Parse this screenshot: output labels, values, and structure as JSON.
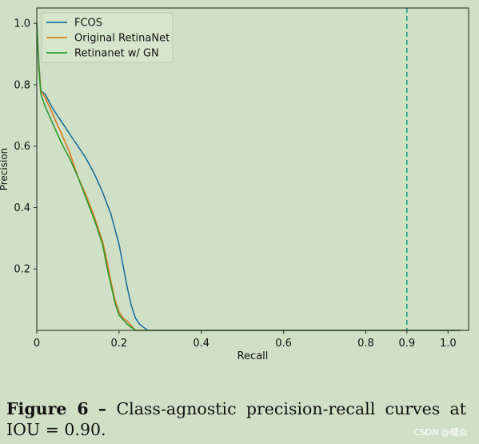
{
  "chart_data": {
    "type": "line",
    "title": "",
    "xlabel": "Recall",
    "ylabel": "Precision",
    "xlim": [
      0,
      1.05
    ],
    "ylim": [
      0,
      1.05
    ],
    "xticks": [
      "0",
      "0.2",
      "0.4",
      "0.6",
      "0.8",
      "0.9",
      "1.0"
    ],
    "xtick_values": [
      0,
      0.2,
      0.4,
      0.6,
      0.8,
      0.9,
      1.0
    ],
    "yticks": [
      "0.2",
      "0.4",
      "0.6",
      "0.8",
      "1.0"
    ],
    "ytick_values": [
      0.2,
      0.4,
      0.6,
      0.8,
      1.0
    ],
    "grid": false,
    "legend_position": "top-left",
    "vline": {
      "x": 0.9,
      "color": "#17a589",
      "style": "dashed"
    },
    "series": [
      {
        "name": "FCOS",
        "color": "#1f6f9a",
        "x": [
          0,
          0.005,
          0.01,
          0.02,
          0.04,
          0.06,
          0.08,
          0.1,
          0.12,
          0.14,
          0.16,
          0.18,
          0.2,
          0.21,
          0.22,
          0.23,
          0.24,
          0.25,
          0.26,
          0.27,
          0.3,
          1.03
        ],
        "y": [
          1.0,
          0.87,
          0.78,
          0.77,
          0.72,
          0.68,
          0.64,
          0.6,
          0.56,
          0.51,
          0.45,
          0.38,
          0.28,
          0.21,
          0.14,
          0.08,
          0.04,
          0.02,
          0.01,
          0.0,
          0.0,
          0.0
        ]
      },
      {
        "name": "Original RetinaNet",
        "color": "#d97a1f",
        "x": [
          0,
          0.005,
          0.01,
          0.02,
          0.04,
          0.06,
          0.08,
          0.1,
          0.12,
          0.14,
          0.16,
          0.17,
          0.18,
          0.19,
          0.2,
          0.21,
          0.22,
          0.23,
          0.24,
          0.27,
          1.03
        ],
        "y": [
          1.0,
          0.86,
          0.78,
          0.76,
          0.7,
          0.64,
          0.58,
          0.5,
          0.44,
          0.37,
          0.29,
          0.23,
          0.16,
          0.1,
          0.06,
          0.04,
          0.03,
          0.015,
          0.0,
          0.0,
          0.0
        ]
      },
      {
        "name": "Retinanet w/ GN",
        "color": "#2e9a2e",
        "x": [
          0,
          0.005,
          0.01,
          0.02,
          0.04,
          0.06,
          0.08,
          0.1,
          0.12,
          0.14,
          0.16,
          0.17,
          0.18,
          0.19,
          0.2,
          0.21,
          0.22,
          0.23,
          0.24,
          0.27,
          1.03
        ],
        "y": [
          1.0,
          0.85,
          0.77,
          0.73,
          0.67,
          0.61,
          0.56,
          0.5,
          0.43,
          0.36,
          0.28,
          0.21,
          0.15,
          0.09,
          0.05,
          0.035,
          0.02,
          0.01,
          0.0,
          0.0,
          0.0
        ]
      }
    ]
  },
  "caption": {
    "label": "Figure 6",
    "dash": "–",
    "text": "Class-agnostic precision-recall curves at IOU = 0.90."
  },
  "watermark": "CSDN @暖焱"
}
